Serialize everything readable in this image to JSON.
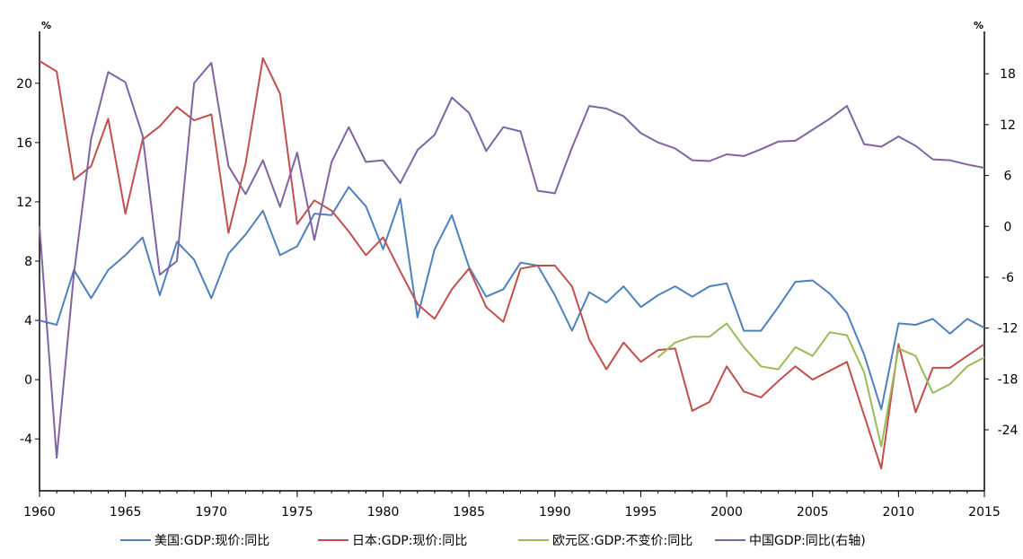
{
  "chart_data": {
    "type": "line",
    "left_unit": "%",
    "right_unit": "%",
    "x_range": [
      1960,
      2015
    ],
    "x_ticks": [
      1960,
      1965,
      1970,
      1975,
      1980,
      1985,
      1990,
      1995,
      2000,
      2005,
      2010,
      2015
    ],
    "y_left": {
      "range": [
        -7.5,
        23.5
      ],
      "ticks": [
        -4,
        0,
        4,
        8,
        12,
        16,
        20
      ]
    },
    "y_right": {
      "range": [
        -31.2,
        23.0
      ],
      "ticks": [
        -24,
        -18,
        -12,
        -6,
        0,
        6,
        12,
        18
      ]
    },
    "grid": false,
    "legend_position": "bottom",
    "series": [
      {
        "name": "美国:GDP:现价:同比",
        "color": "#4f81bd",
        "axis": "left",
        "x": [
          1960,
          1961,
          1962,
          1963,
          1964,
          1965,
          1966,
          1967,
          1968,
          1969,
          1970,
          1971,
          1972,
          1973,
          1974,
          1975,
          1976,
          1977,
          1978,
          1979,
          1980,
          1981,
          1982,
          1983,
          1984,
          1985,
          1986,
          1987,
          1988,
          1989,
          1990,
          1991,
          1992,
          1993,
          1994,
          1995,
          1996,
          1997,
          1998,
          1999,
          2000,
          2001,
          2002,
          2003,
          2004,
          2005,
          2006,
          2007,
          2008,
          2009,
          2010,
          2011,
          2012,
          2013,
          2014,
          2015
        ],
        "values": [
          4.0,
          3.7,
          7.4,
          5.5,
          7.4,
          8.4,
          9.6,
          5.7,
          9.3,
          8.1,
          5.5,
          8.5,
          9.8,
          11.4,
          8.4,
          9.0,
          11.2,
          11.1,
          13.0,
          11.7,
          8.8,
          12.2,
          4.2,
          8.8,
          11.1,
          7.6,
          5.6,
          6.1,
          7.9,
          7.7,
          5.7,
          3.3,
          5.9,
          5.2,
          6.3,
          4.9,
          5.7,
          6.3,
          5.6,
          6.3,
          6.5,
          3.3,
          3.3,
          4.9,
          6.6,
          6.7,
          5.8,
          4.5,
          1.7,
          -2.0,
          3.8,
          3.7,
          4.1,
          3.1,
          4.1,
          3.5
        ]
      },
      {
        "name": "日本:GDP:现价:同比",
        "color": "#c0504d",
        "axis": "left",
        "x": [
          1960,
          1961,
          1962,
          1963,
          1964,
          1965,
          1966,
          1967,
          1968,
          1969,
          1970,
          1971,
          1972,
          1973,
          1974,
          1975,
          1976,
          1977,
          1978,
          1979,
          1980,
          1981,
          1982,
          1983,
          1984,
          1985,
          1986,
          1987,
          1988,
          1989,
          1990,
          1991,
          1992,
          1993,
          1994,
          1995,
          1996,
          1997,
          1998,
          1999,
          2000,
          2001,
          2002,
          2003,
          2004,
          2005,
          2006,
          2007,
          2008,
          2009,
          2010,
          2011,
          2012,
          2013,
          2014,
          2015
        ],
        "values": [
          21.5,
          20.8,
          13.5,
          14.4,
          17.6,
          11.2,
          16.2,
          17.1,
          18.4,
          17.5,
          17.9,
          9.9,
          14.6,
          21.7,
          19.3,
          10.5,
          12.1,
          11.4,
          10.0,
          8.4,
          9.6,
          7.3,
          5.1,
          4.1,
          6.1,
          7.5,
          4.9,
          3.9,
          7.5,
          7.7,
          7.7,
          6.3,
          2.7,
          0.7,
          2.5,
          1.2,
          2.0,
          2.1,
          -2.1,
          -1.5,
          0.9,
          -0.8,
          -1.2,
          -0.1,
          0.9,
          0.0,
          0.6,
          1.2,
          -2.4,
          -6.0,
          2.4,
          -2.2,
          0.8,
          0.8,
          1.6,
          2.4
        ]
      },
      {
        "name": "欧元区:GDP:不变价:同比",
        "color": "#9bbb59",
        "axis": "left",
        "x": [
          1996,
          1997,
          1998,
          1999,
          2000,
          2001,
          2002,
          2003,
          2004,
          2005,
          2006,
          2007,
          2008,
          2009,
          2010,
          2011,
          2012,
          2013,
          2014,
          2015
        ],
        "values": [
          1.5,
          2.5,
          2.9,
          2.9,
          3.8,
          2.2,
          0.9,
          0.7,
          2.2,
          1.6,
          3.2,
          3.0,
          0.5,
          -4.5,
          2.1,
          1.6,
          -0.9,
          -0.3,
          0.9,
          1.5
        ]
      },
      {
        "name": "中国GDP:同比(右轴)",
        "color": "#8064a2",
        "axis": "right",
        "x": [
          1960,
          1961,
          1962,
          1963,
          1964,
          1965,
          1966,
          1967,
          1968,
          1969,
          1970,
          1971,
          1972,
          1973,
          1974,
          1975,
          1976,
          1977,
          1978,
          1979,
          1980,
          1981,
          1982,
          1983,
          1984,
          1985,
          1986,
          1987,
          1988,
          1989,
          1990,
          1991,
          1992,
          1993,
          1994,
          1995,
          1996,
          1997,
          1998,
          1999,
          2000,
          2001,
          2002,
          2003,
          2004,
          2005,
          2006,
          2007,
          2008,
          2009,
          2010,
          2011,
          2012,
          2013,
          2014,
          2015
        ],
        "values": [
          0.0,
          -27.3,
          -5.6,
          10.3,
          18.2,
          17.0,
          10.7,
          -5.7,
          -4.1,
          16.9,
          19.3,
          7.1,
          3.8,
          7.8,
          2.3,
          8.7,
          -1.6,
          7.6,
          11.7,
          7.6,
          7.8,
          5.1,
          9.0,
          10.8,
          15.2,
          13.4,
          8.9,
          11.7,
          11.2,
          4.2,
          3.9,
          9.3,
          14.2,
          13.9,
          13.0,
          11.0,
          9.9,
          9.2,
          7.8,
          7.7,
          8.5,
          8.3,
          9.1,
          10.0,
          10.1,
          11.4,
          12.7,
          14.2,
          9.7,
          9.4,
          10.6,
          9.5,
          7.9,
          7.8,
          7.3,
          6.9
        ]
      }
    ]
  }
}
